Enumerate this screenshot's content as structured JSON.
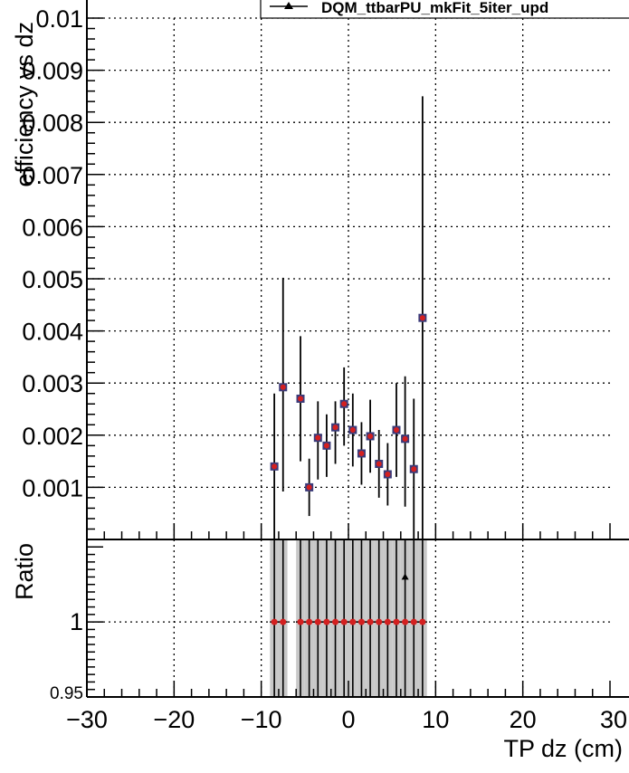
{
  "chart_data": {
    "type": "scatter",
    "legend": {
      "entries": [
        "DQM_ttbarPU_mkFit_5iter_upd"
      ],
      "placement": "top-right"
    },
    "top_panel": {
      "ylabel": "efficiency vs dz",
      "xlim": [
        -30,
        30
      ],
      "ylim": [
        0,
        0.01
      ],
      "yticks": [
        0.001,
        0.002,
        0.003,
        0.004,
        0.005,
        0.006,
        0.007,
        0.008,
        0.009,
        0.01
      ],
      "ytick_labels": [
        "0.001",
        "0.002",
        "0.003",
        "0.004",
        "0.005",
        "0.006",
        "0.007",
        "0.008",
        "0.009",
        "0.01"
      ],
      "grid": true,
      "series": [
        {
          "name": "DQM_ttbarPU_mkFit_5iter_upd",
          "x": [
            -8.5,
            -7.5,
            -5.5,
            -4.5,
            -3.5,
            -2.5,
            -1.5,
            -0.5,
            0.5,
            1.5,
            2.5,
            3.5,
            4.5,
            5.5,
            6.5,
            7.5,
            8.5
          ],
          "y": [
            0.0014,
            0.00292,
            0.0027,
            0.001,
            0.00195,
            0.0018,
            0.00215,
            0.0026,
            0.0021,
            0.00165,
            0.00198,
            0.00145,
            0.00125,
            0.0021,
            0.00193,
            0.00135,
            0.00425
          ],
          "yerr_low": [
            0.0014,
            0.002,
            0.0012,
            0.00055,
            0.0008,
            0.0006,
            0.0007,
            0.0008,
            0.0007,
            0.0006,
            0.0007,
            0.00065,
            0.0006,
            0.0009,
            0.0013,
            0.00135,
            0.00425
          ],
          "yerr_high": [
            0.0014,
            0.0021,
            0.0012,
            0.00055,
            0.0007,
            0.0006,
            0.0005,
            0.0007,
            0.0007,
            0.0006,
            0.0007,
            0.00065,
            0.0006,
            0.0009,
            0.0012,
            0.00135,
            0.00425
          ]
        }
      ]
    },
    "bottom_panel": {
      "ylabel": "Ratio",
      "xlabel": "TP dz (cm)",
      "xlim": [
        -30,
        30
      ],
      "ylim": [
        0.95,
        1.055
      ],
      "xticks": [
        -30,
        -20,
        -10,
        0,
        10,
        20,
        30
      ],
      "xtick_labels": [
        "−30",
        "−20",
        "−10",
        "0",
        "10",
        "20",
        "30"
      ],
      "yticks": [
        0.95,
        1
      ],
      "ytick_labels": [
        "0.95",
        "1"
      ],
      "grid": true,
      "band_x": [
        -8.5,
        -7.5,
        -5.5,
        -4.5,
        -3.5,
        -2.5,
        -1.5,
        -0.5,
        0.5,
        1.5,
        2.5,
        3.5,
        4.5,
        5.5,
        6.5,
        7.5,
        8.5
      ],
      "ratio": [
        1,
        1,
        1,
        1,
        1,
        1,
        1,
        1,
        1,
        1,
        1,
        1,
        1,
        1,
        1,
        1,
        1
      ],
      "outlier": {
        "x": 6.5,
        "y": 1.03
      }
    }
  }
}
